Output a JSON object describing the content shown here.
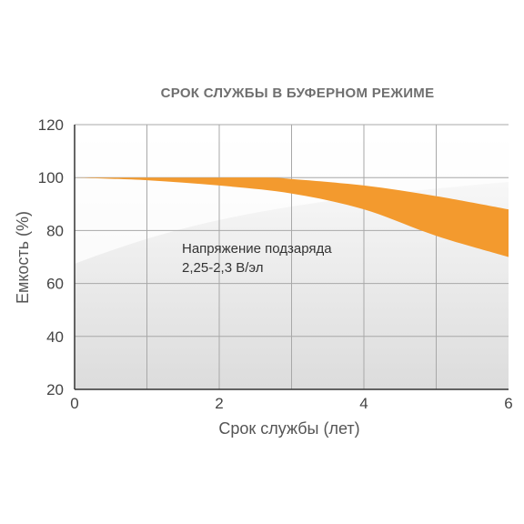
{
  "chart_data": {
    "type": "area",
    "title": "СРОК СЛУЖБЫ В БУФЕРНОМ РЕЖИМЕ",
    "xlabel": "Срок службы (лет)",
    "ylabel": "Емкость (%)",
    "xlim": [
      0,
      6
    ],
    "ylim": [
      20,
      120
    ],
    "xticks": [
      0,
      2,
      4,
      6
    ],
    "yticks": [
      20,
      40,
      60,
      80,
      100,
      120
    ],
    "grid": true,
    "annotation": [
      "Напряжение подзаряда",
      "2,25-2,3 В/эл"
    ],
    "band_color": "#f39a2e",
    "series": [
      {
        "role": "upper",
        "x": [
          0,
          1,
          2,
          2.7,
          3,
          4,
          5,
          6
        ],
        "values": [
          100,
          100,
          100,
          100,
          99.5,
          97,
          93,
          88
        ]
      },
      {
        "role": "lower",
        "x": [
          0,
          1,
          2,
          3,
          4,
          5,
          6
        ],
        "values": [
          100,
          99,
          97,
          94,
          88,
          78,
          70
        ]
      }
    ]
  }
}
